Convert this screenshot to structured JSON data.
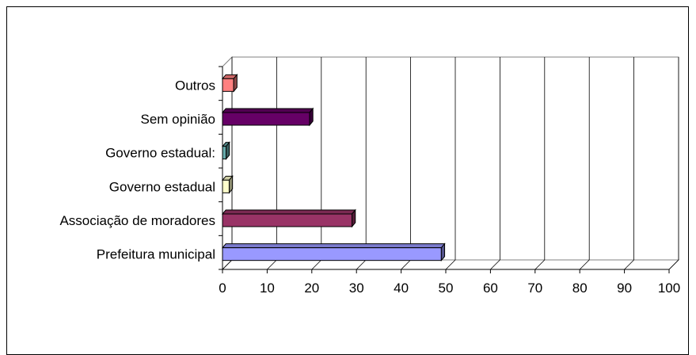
{
  "chart_data": {
    "type": "bar",
    "orientation": "horizontal",
    "three_d": true,
    "categories": [
      "Prefeitura municipal",
      "Associação de moradores",
      "Governo estadual",
      "Governo estadual:",
      "Sem opinião",
      "Outros"
    ],
    "values": [
      49,
      29,
      1.5,
      0.8,
      19.5,
      2.5
    ],
    "colors": [
      "#9999ff",
      "#993366",
      "#ffffcc",
      "#66aaaa",
      "#660066",
      "#ff8080"
    ],
    "xlim": [
      0,
      100
    ],
    "xticks": [
      0,
      10,
      20,
      30,
      40,
      50,
      60,
      70,
      80,
      90,
      100
    ],
    "xtick_labels": [
      "0",
      "10",
      "20",
      "30",
      "40",
      "50",
      "60",
      "70",
      "80",
      "90",
      "100"
    ],
    "grid": true,
    "legend": "none"
  }
}
